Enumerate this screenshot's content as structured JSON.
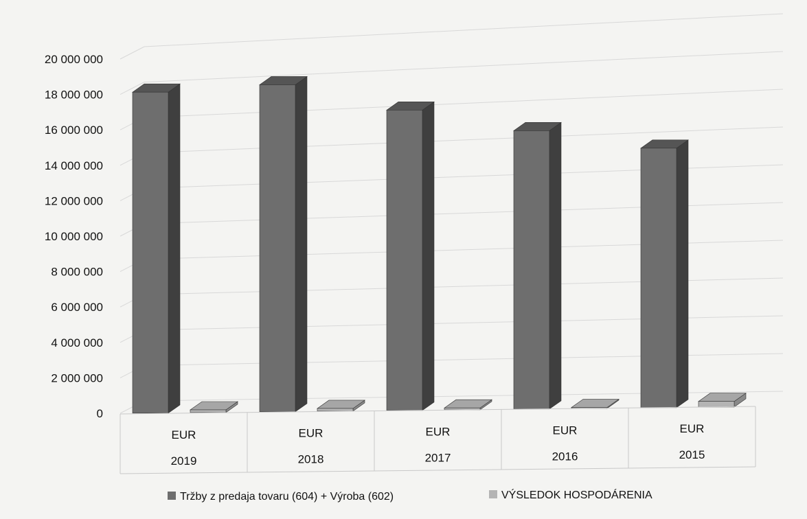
{
  "chart_data": {
    "type": "bar",
    "title": "",
    "xlabel": "",
    "ylabel": "",
    "ylim": [
      0,
      20000000
    ],
    "y_ticks": [
      "0",
      "2 000 000",
      "4 000 000",
      "6 000 000",
      "8 000 000",
      "10 000 000",
      "12 000 000",
      "14 000 000",
      "16 000 000",
      "18 000 000",
      "20 000 000"
    ],
    "categories": [
      {
        "unit": "EUR",
        "year": "2019"
      },
      {
        "unit": "EUR",
        "year": "2018"
      },
      {
        "unit": "EUR",
        "year": "2017"
      },
      {
        "unit": "EUR",
        "year": "2016"
      },
      {
        "unit": "EUR",
        "year": "2015"
      }
    ],
    "series": [
      {
        "name": "Tržby z predaja tovaru (604) + Výroba (602)",
        "values": [
          18100000,
          18200000,
          16500000,
          15100000,
          13900000
        ],
        "color": "#6e6e6e"
      },
      {
        "name": "VÝSLEDOK HOSPODÁRENIA",
        "values": [
          150000,
          150000,
          100000,
          50000,
          300000
        ],
        "color": "#b4b4b4"
      }
    ],
    "grid": true,
    "legend_position": "bottom"
  }
}
